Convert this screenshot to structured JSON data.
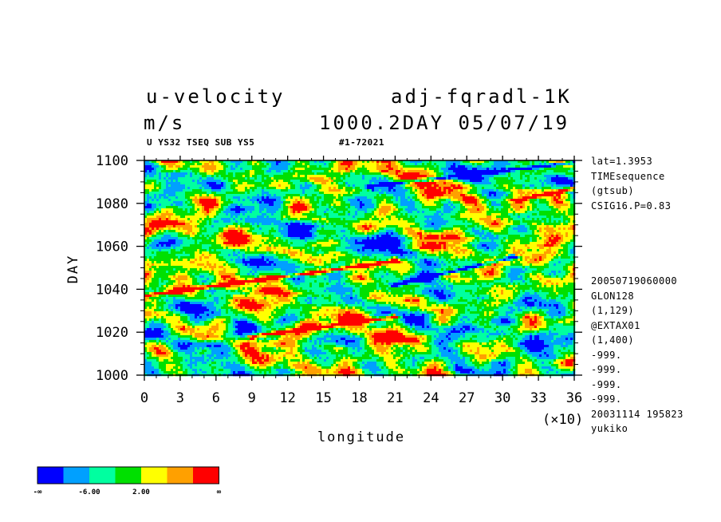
{
  "header": {
    "variable": "u-velocity",
    "experiment": "adj-fqradl-1K",
    "units": "m/s",
    "time_stamp": "1000.2DAY 05/07/19",
    "sub_left": "U YS32 TSEQ SUB YS5",
    "sub_right": "#1-72021"
  },
  "side_info_top": [
    "lat=1.3953",
    "TIMEsequence",
    "(gtsub)",
    "CSIG16.P=0.83"
  ],
  "side_info_bottom": [
    "20050719060000",
    "GLON128",
    "(1,129)",
    "@EXTAX01",
    "(1,400)",
    "-999.",
    "-999.",
    "-999.",
    "-999.",
    "20031114 195823",
    "yukiko"
  ],
  "colors": {
    "blue": "#0000ff",
    "light_blue": "#00a0ff",
    "cyan_green": "#00ffa0",
    "green": "#00e000",
    "yellow": "#ffff00",
    "orange": "#ffa000",
    "red": "#ff0000"
  },
  "chart_data": {
    "type": "heatmap",
    "xlabel": "longitude",
    "x_multiplier_label": "(×10)",
    "ylabel": "DAY",
    "xlim": [
      0,
      36
    ],
    "ylim": [
      1000,
      1100
    ],
    "x_ticks": [
      "0",
      "3",
      "6",
      "9",
      "12",
      "15",
      "18",
      "21",
      "24",
      "27",
      "30",
      "33",
      "36"
    ],
    "y_ticks": [
      "1000",
      "1020",
      "1040",
      "1060",
      "1080",
      "1100"
    ],
    "colorbar": {
      "colors": [
        "#0000ff",
        "#00a0ff",
        "#00ffa0",
        "#00e000",
        "#ffff00",
        "#ffa000",
        "#ff0000"
      ],
      "labels": [
        "-∞",
        "-6.00",
        "2.00",
        "∞"
      ]
    },
    "features": [
      {
        "type": "red-band",
        "x_start": 0,
        "y_start": 1037,
        "x_end": 21,
        "y_end": 1053
      },
      {
        "type": "red-band",
        "x_start": 9,
        "y_start": 1018,
        "x_end": 21,
        "y_end": 1027
      },
      {
        "type": "red-band",
        "x_start": 31,
        "y_start": 1081,
        "x_end": 36,
        "y_end": 1087
      },
      {
        "type": "blue-band",
        "x_start": 21,
        "y_start": 1042,
        "x_end": 31,
        "y_end": 1055
      },
      {
        "type": "blue-band",
        "x_start": 19,
        "y_start": 1088,
        "x_end": 36,
        "y_end": 1099
      }
    ]
  }
}
